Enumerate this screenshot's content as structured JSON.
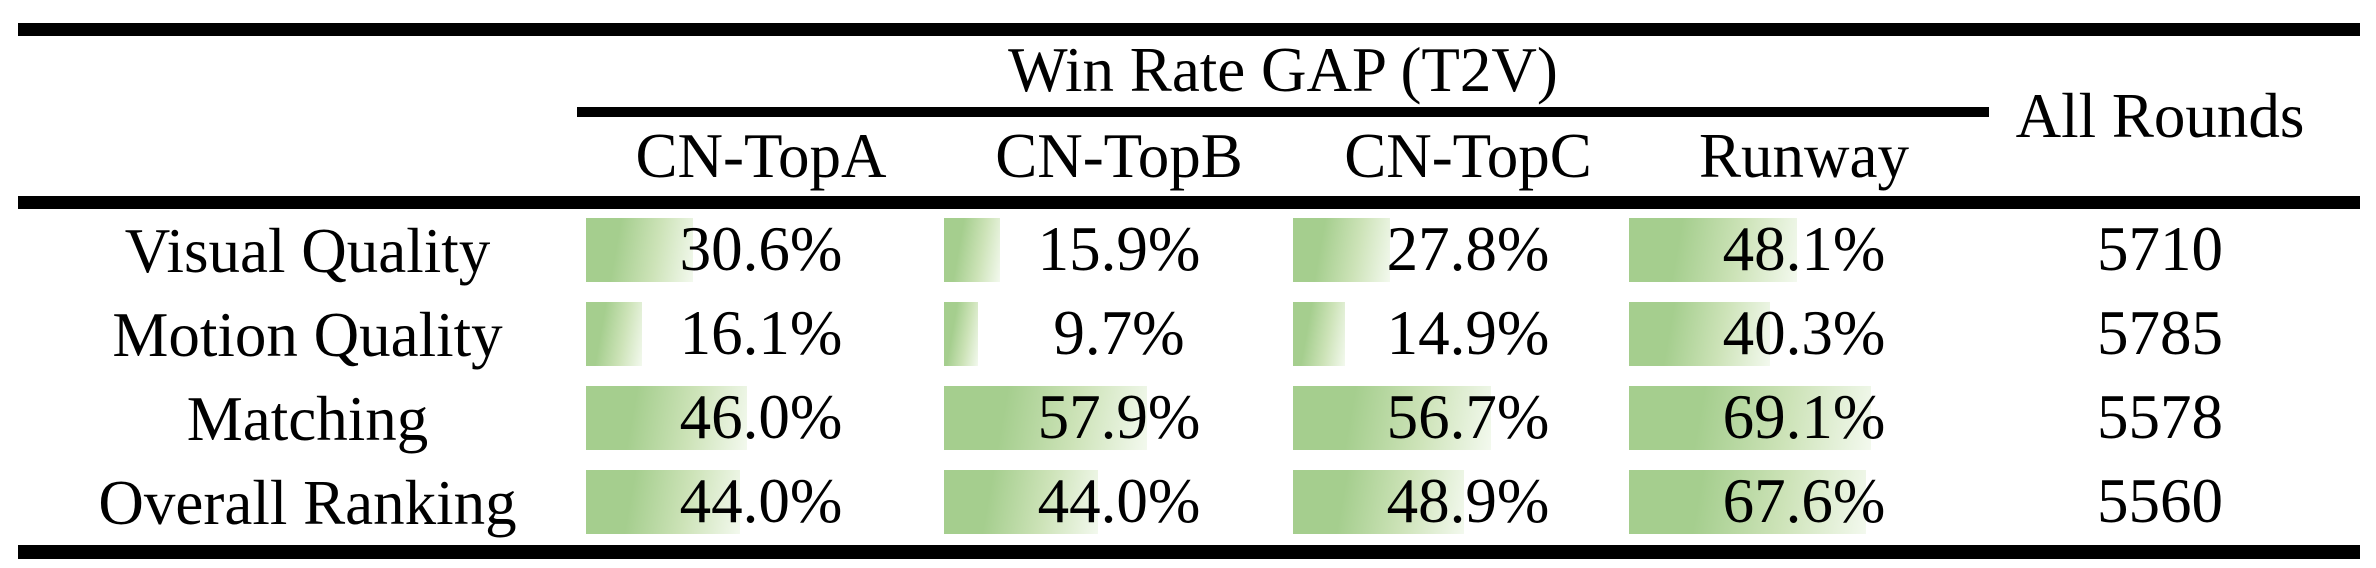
{
  "table": {
    "group_header": "Win Rate GAP (T2V)",
    "all_rounds_header": "All Rounds",
    "columns": [
      "CN-TopA",
      "CN-TopB",
      "CN-TopC",
      "Runway"
    ],
    "rows": [
      {
        "label": "Visual Quality",
        "cells": [
          {
            "value": 30.6,
            "display": "30.6%"
          },
          {
            "value": 15.9,
            "display": "15.9%"
          },
          {
            "value": 27.8,
            "display": "27.8%"
          },
          {
            "value": 48.1,
            "display": "48.1%"
          }
        ],
        "all_rounds": "5710"
      },
      {
        "label": "Motion Quality",
        "cells": [
          {
            "value": 16.1,
            "display": "16.1%"
          },
          {
            "value": 9.7,
            "display": "9.7%"
          },
          {
            "value": 14.9,
            "display": "14.9%"
          },
          {
            "value": 40.3,
            "display": "40.3%"
          }
        ],
        "all_rounds": "5785"
      },
      {
        "label": "Matching",
        "cells": [
          {
            "value": 46.0,
            "display": "46.0%"
          },
          {
            "value": 57.9,
            "display": "57.9%"
          },
          {
            "value": 56.7,
            "display": "56.7%"
          },
          {
            "value": 69.1,
            "display": "69.1%"
          }
        ],
        "all_rounds": "5578"
      },
      {
        "label": "Overall Ranking",
        "cells": [
          {
            "value": 44.0,
            "display": "44.0%"
          },
          {
            "value": 44.0,
            "display": "44.0%"
          },
          {
            "value": 48.9,
            "display": "48.9%"
          },
          {
            "value": 67.6,
            "display": "67.6%"
          }
        ],
        "all_rounds": "5560"
      }
    ],
    "colors": {
      "bar_green": "#a5ce8e",
      "bar_green_mid": "#cde3b8",
      "bar_fade": "#f3f9ee",
      "rule_black": "#000000",
      "text": "#000000"
    }
  },
  "chart_data": {
    "type": "table",
    "title": "Win Rate GAP (T2V)",
    "row_header": [
      "Visual Quality",
      "Motion Quality",
      "Matching",
      "Overall Ranking"
    ],
    "columns": [
      "CN-TopA",
      "CN-TopB",
      "CN-TopC",
      "Runway",
      "All Rounds"
    ],
    "values": [
      [
        30.6,
        15.9,
        27.8,
        48.1,
        5710
      ],
      [
        16.1,
        9.7,
        14.9,
        40.3,
        5785
      ],
      [
        46.0,
        57.9,
        56.7,
        69.1,
        5578
      ],
      [
        44.0,
        44.0,
        48.9,
        67.6,
        5560
      ]
    ],
    "notes": "Percent cells carry left-anchored green gradient data bars whose width equals the percentage of the cell width (bar range 0-100%)."
  }
}
